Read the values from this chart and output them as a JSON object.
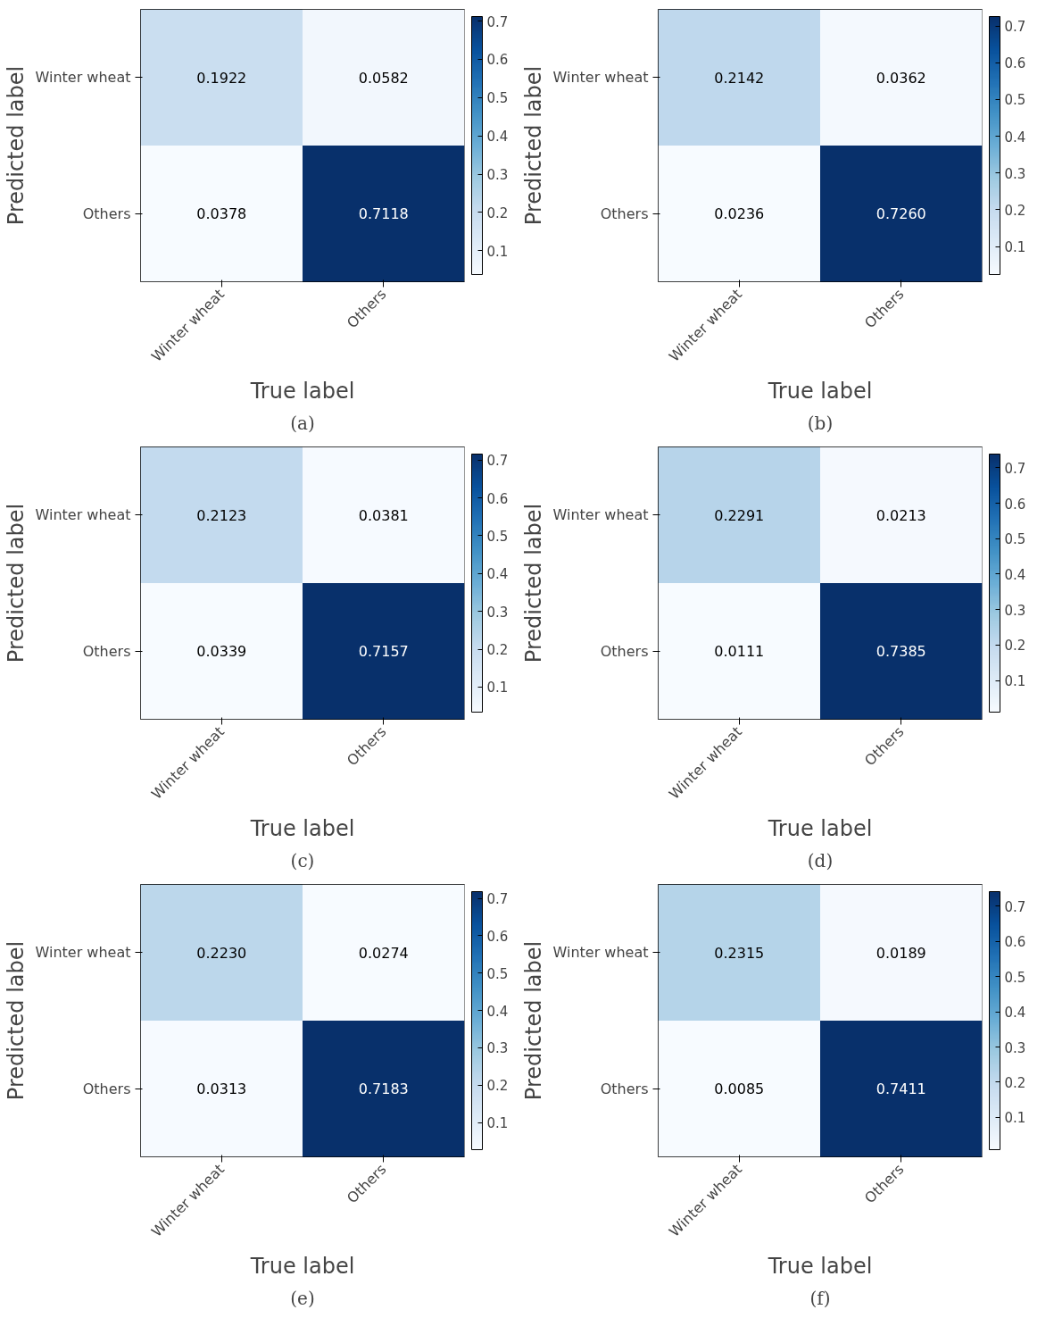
{
  "chart_data": [
    {
      "type": "heatmap",
      "categories": [
        "Winter wheat",
        "Others"
      ],
      "y_categories": [
        "Winter wheat",
        "Others"
      ],
      "cells": [
        [
          0.1922,
          0.0582
        ],
        [
          0.0378,
          0.7118
        ]
      ],
      "cell_labels": [
        [
          "0.1922",
          "0.0582"
        ],
        [
          "0.0378",
          "0.7118"
        ]
      ],
      "clim": [
        0.0378,
        0.7118
      ],
      "cticks": [
        0.1,
        0.2,
        0.3,
        0.4,
        0.5,
        0.6,
        0.7
      ],
      "xlabel": "True label",
      "ylabel": "Predicted label",
      "annotations": [
        "(a)"
      ]
    },
    {
      "type": "heatmap",
      "categories": [
        "Winter wheat",
        "Others"
      ],
      "y_categories": [
        "Winter wheat",
        "Others"
      ],
      "cells": [
        [
          0.2142,
          0.0362
        ],
        [
          0.0236,
          0.726
        ]
      ],
      "cell_labels": [
        [
          "0.2142",
          "0.0362"
        ],
        [
          "0.0236",
          "0.7260"
        ]
      ],
      "clim": [
        0.0236,
        0.726
      ],
      "cticks": [
        0.1,
        0.2,
        0.3,
        0.4,
        0.5,
        0.6,
        0.7
      ],
      "xlabel": "True label",
      "ylabel": "Predicted label",
      "annotations": [
        "(b)"
      ]
    },
    {
      "type": "heatmap",
      "categories": [
        "Winter wheat",
        "Others"
      ],
      "y_categories": [
        "Winter wheat",
        "Others"
      ],
      "cells": [
        [
          0.2123,
          0.0381
        ],
        [
          0.0339,
          0.7157
        ]
      ],
      "cell_labels": [
        [
          "0.2123",
          "0.0381"
        ],
        [
          "0.0339",
          "0.7157"
        ]
      ],
      "clim": [
        0.0339,
        0.7157
      ],
      "cticks": [
        0.1,
        0.2,
        0.3,
        0.4,
        0.5,
        0.6,
        0.7
      ],
      "xlabel": "True label",
      "ylabel": "Predicted label",
      "annotations": [
        "(c)"
      ]
    },
    {
      "type": "heatmap",
      "categories": [
        "Winter wheat",
        "Others"
      ],
      "y_categories": [
        "Winter wheat",
        "Others"
      ],
      "cells": [
        [
          0.2291,
          0.0213
        ],
        [
          0.0111,
          0.7385
        ]
      ],
      "cell_labels": [
        [
          "0.2291",
          "0.0213"
        ],
        [
          "0.0111",
          "0.7385"
        ]
      ],
      "clim": [
        0.0111,
        0.7385
      ],
      "cticks": [
        0.1,
        0.2,
        0.3,
        0.4,
        0.5,
        0.6,
        0.7
      ],
      "xlabel": "True label",
      "ylabel": "Predicted label",
      "annotations": [
        "(d)"
      ]
    },
    {
      "type": "heatmap",
      "categories": [
        "Winter wheat",
        "Others"
      ],
      "y_categories": [
        "Winter wheat",
        "Others"
      ],
      "cells": [
        [
          0.223,
          0.0274
        ],
        [
          0.0313,
          0.7183
        ]
      ],
      "cell_labels": [
        [
          "0.2230",
          "0.0274"
        ],
        [
          "0.0313",
          "0.7183"
        ]
      ],
      "clim": [
        0.0274,
        0.7183
      ],
      "cticks": [
        0.1,
        0.2,
        0.3,
        0.4,
        0.5,
        0.6,
        0.7
      ],
      "xlabel": "True label",
      "ylabel": "Predicted label",
      "annotations": [
        "(e)"
      ]
    },
    {
      "type": "heatmap",
      "categories": [
        "Winter wheat",
        "Others"
      ],
      "y_categories": [
        "Winter wheat",
        "Others"
      ],
      "cells": [
        [
          0.2315,
          0.0189
        ],
        [
          0.0085,
          0.7411
        ]
      ],
      "cell_labels": [
        [
          "0.2315",
          "0.0189"
        ],
        [
          "0.0085",
          "0.7411"
        ]
      ],
      "clim": [
        0.0085,
        0.7411
      ],
      "cticks": [
        0.1,
        0.2,
        0.3,
        0.4,
        0.5,
        0.6,
        0.7
      ],
      "xlabel": "True label",
      "ylabel": "Predicted label",
      "annotations": [
        "(f)"
      ]
    }
  ]
}
